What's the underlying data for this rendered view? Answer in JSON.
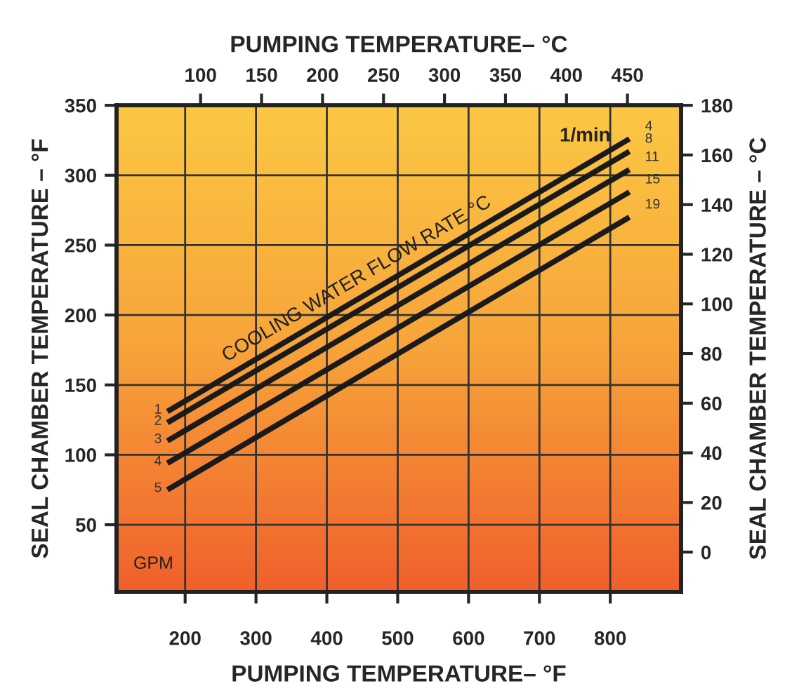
{
  "chart_data": {
    "type": "line",
    "xlabel": "PUMPING TEMPERATURE– °F",
    "ylabel": "SEAL CHAMBER TEMPERATURE – °F",
    "y2label": "SEAL CHAMBER TEMPERATURE – °C",
    "x2label": "PUMPING TEMPERATURE– °C",
    "xlim": [
      103,
      900
    ],
    "xticks": [
      200,
      300,
      400,
      500,
      600,
      700,
      800
    ],
    "ylim": [
      2,
      350
    ],
    "yticks": [
      50,
      100,
      150,
      200,
      250,
      300,
      350
    ],
    "y2lim": [
      -16,
      180
    ],
    "y2ticks": [
      0,
      20,
      40,
      60,
      80,
      100,
      120,
      140,
      160,
      180
    ],
    "x2lim": [
      31,
      494
    ],
    "x2ticks": [
      100,
      150,
      200,
      250,
      300,
      350,
      400,
      450
    ],
    "x": [
      175,
      827
    ],
    "grid": true,
    "legend": false,
    "marker": "none",
    "line_style": "solid",
    "series": [
      {
        "name": "1",
        "color": "#1a1a1a",
        "values": [
          131,
          326
        ]
      },
      {
        "name": "2",
        "color": "#1a1a1a",
        "values": [
          123,
          317
        ]
      },
      {
        "name": "3",
        "color": "#1a1a1a",
        "values": [
          110,
          304
        ]
      },
      {
        "name": "4",
        "color": "#1a1a1a",
        "values": [
          94,
          288
        ]
      },
      {
        "name": "5",
        "color": "#1a1a1a",
        "values": [
          75,
          270
        ]
      }
    ],
    "annotations": [
      "COOLING WATER FLOW RATE °C",
      "1/min",
      "GPM",
      "4",
      "8",
      "11",
      "15",
      "19"
    ]
  }
}
